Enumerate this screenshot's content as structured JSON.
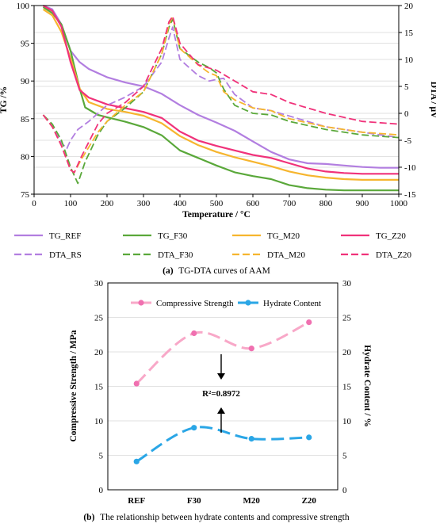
{
  "chart_data": [
    {
      "panel": "a",
      "type": "line",
      "caption_prefix": "(a)",
      "caption_text": "TG-DTA curves of AAM",
      "xlabel": "Temperature / °C",
      "ylabel_left": "TG /%",
      "ylabel_right": "DTA / μV",
      "xlim": [
        0,
        1000
      ],
      "ylim_left": [
        75,
        100
      ],
      "ylim_right": [
        -15,
        20
      ],
      "xticks": [
        0,
        100,
        200,
        300,
        400,
        500,
        600,
        700,
        800,
        900,
        1000
      ],
      "yticks_left": [
        75,
        80,
        85,
        90,
        95,
        100
      ],
      "yticks_right": [
        -15,
        -10,
        -5,
        0,
        5,
        10,
        15,
        20
      ],
      "grid": true,
      "legend_position": "bottom",
      "series": [
        {
          "name": "TG_REF",
          "axis": "left",
          "color": "#b27ee0",
          "dash": "solid",
          "x": [
            25,
            50,
            75,
            100,
            125,
            150,
            200,
            250,
            300,
            350,
            400,
            450,
            500,
            550,
            600,
            650,
            700,
            750,
            800,
            850,
            900,
            950,
            1000
          ],
          "y": [
            100,
            99.5,
            97.5,
            94,
            92.5,
            91.6,
            90.5,
            89.8,
            89.3,
            88.3,
            86.8,
            85.5,
            84.5,
            83.4,
            82,
            80.6,
            79.6,
            79.1,
            79,
            78.8,
            78.6,
            78.5,
            78.5
          ]
        },
        {
          "name": "TG_F30",
          "axis": "left",
          "color": "#5aa83a",
          "dash": "solid",
          "x": [
            25,
            50,
            75,
            100,
            125,
            140,
            175,
            200,
            250,
            300,
            350,
            400,
            450,
            500,
            550,
            600,
            650,
            700,
            750,
            800,
            850,
            900,
            950,
            1000
          ],
          "y": [
            99.8,
            99,
            97.5,
            94,
            89,
            86.5,
            85.5,
            85.2,
            84.6,
            83.9,
            82.8,
            80.8,
            79.8,
            78.8,
            77.9,
            77.4,
            77,
            76.2,
            75.8,
            75.6,
            75.5,
            75.5,
            75.5,
            75.5
          ]
        },
        {
          "name": "TG_M20",
          "axis": "left",
          "color": "#f6b52e",
          "dash": "solid",
          "x": [
            25,
            50,
            75,
            100,
            125,
            150,
            200,
            250,
            300,
            350,
            400,
            450,
            500,
            550,
            600,
            650,
            700,
            750,
            800,
            850,
            900,
            950,
            1000
          ],
          "y": [
            99.5,
            98.7,
            96.5,
            93,
            89,
            87.2,
            86.3,
            85.9,
            85.4,
            84.4,
            82.7,
            81.5,
            80.6,
            79.9,
            79.3,
            78.7,
            78,
            77.5,
            77.2,
            77,
            76.9,
            76.9,
            76.9
          ]
        },
        {
          "name": "TG_Z20",
          "axis": "left",
          "color": "#f0327a",
          "dash": "solid",
          "x": [
            25,
            50,
            75,
            100,
            125,
            150,
            200,
            250,
            300,
            350,
            400,
            450,
            500,
            550,
            600,
            650,
            700,
            750,
            800,
            850,
            900,
            950,
            1000
          ],
          "y": [
            100,
            99.3,
            97.2,
            92.5,
            88.8,
            87.8,
            86.9,
            86.4,
            85.9,
            85.1,
            83.3,
            82.1,
            81.4,
            80.8,
            80.2,
            79.8,
            79.1,
            78.4,
            78,
            77.8,
            77.7,
            77.7,
            77.7
          ]
        },
        {
          "name": "DTA_RS",
          "axis": "right",
          "color": "#b27ee0",
          "dash": "long-dash",
          "x": [
            25,
            50,
            75,
            90,
            100,
            120,
            150,
            200,
            250,
            300,
            350,
            370,
            380,
            400,
            450,
            480,
            500,
            520,
            550,
            600,
            650,
            700,
            800,
            900,
            1000
          ],
          "y": [
            -0.3,
            -2.5,
            -5.5,
            -6.5,
            -5,
            -3,
            -1.5,
            1.5,
            3,
            5,
            9.5,
            14,
            16,
            10,
            7,
            6,
            6.3,
            6.5,
            3.5,
            1,
            0.5,
            -0.5,
            -2.5,
            -3.5,
            -4.5
          ]
        },
        {
          "name": "DTA_F30",
          "axis": "right",
          "color": "#5aa83a",
          "dash": "long-dash",
          "x": [
            25,
            50,
            75,
            100,
            120,
            140,
            175,
            200,
            250,
            300,
            350,
            370,
            380,
            400,
            450,
            480,
            500,
            520,
            550,
            600,
            650,
            700,
            800,
            900,
            1000
          ],
          "y": [
            -0.3,
            -2,
            -5,
            -10,
            -13,
            -9,
            -4,
            -1.5,
            1,
            4,
            11,
            16,
            17.5,
            12,
            9.5,
            8.5,
            7.5,
            4.5,
            1.5,
            0,
            -0.3,
            -1.5,
            -3,
            -4,
            -4.5
          ]
        },
        {
          "name": "DTA_M20",
          "axis": "right",
          "color": "#f6b52e",
          "dash": "long-dash",
          "x": [
            25,
            50,
            75,
            100,
            110,
            130,
            175,
            200,
            250,
            300,
            350,
            370,
            380,
            400,
            450,
            480,
            500,
            520,
            550,
            600,
            650,
            700,
            800,
            900,
            1000
          ],
          "y": [
            -0.3,
            -2.5,
            -6,
            -10.5,
            -11,
            -8.5,
            -3.5,
            -1.5,
            1.5,
            4,
            11,
            16.5,
            18,
            12,
            9,
            7.5,
            7,
            4,
            2.5,
            1,
            0.5,
            -1,
            -2.5,
            -3.5,
            -4
          ]
        },
        {
          "name": "DTA_Z20",
          "axis": "right",
          "color": "#f0327a",
          "dash": "long-dash",
          "x": [
            25,
            50,
            75,
            100,
            110,
            130,
            175,
            200,
            250,
            300,
            350,
            370,
            380,
            400,
            450,
            500,
            550,
            600,
            650,
            700,
            800,
            900,
            1000
          ],
          "y": [
            -0.3,
            -2.5,
            -6,
            -10.5,
            -11,
            -8,
            -2,
            0,
            2,
            5,
            12,
            17,
            18,
            13,
            9,
            8,
            6,
            4,
            3.5,
            2,
            0,
            -1.5,
            -2
          ]
        }
      ]
    },
    {
      "panel": "b",
      "type": "line",
      "caption_prefix": "(b)",
      "caption_text": "The relationship between hydrate contents and compressive strength",
      "ylabel_left": "Compressive Strength / MPa",
      "ylabel_right": "Hydrate Content / %",
      "categories": [
        "REF",
        "F30",
        "M20",
        "Z20"
      ],
      "ylim_left": [
        0,
        30
      ],
      "ylim_right": [
        0,
        30
      ],
      "yticks_left": [
        0,
        5,
        10,
        15,
        20,
        25,
        30
      ],
      "yticks_right": [
        0,
        5,
        10,
        15,
        20,
        25,
        30
      ],
      "grid": true,
      "legend_position": "top",
      "annotation": "R²=0.8972",
      "series": [
        {
          "name": "Compressive Strength",
          "axis": "left",
          "color": "#f8a8c8",
          "marker_color": "#f070b0",
          "values": [
            15.4,
            22.7,
            20.5,
            24.3
          ]
        },
        {
          "name": "Hydrate Content",
          "axis": "right",
          "color": "#2aa6e6",
          "marker_color": "#2aa6e6",
          "values": [
            4.1,
            9.0,
            7.4,
            7.6
          ]
        }
      ]
    }
  ]
}
